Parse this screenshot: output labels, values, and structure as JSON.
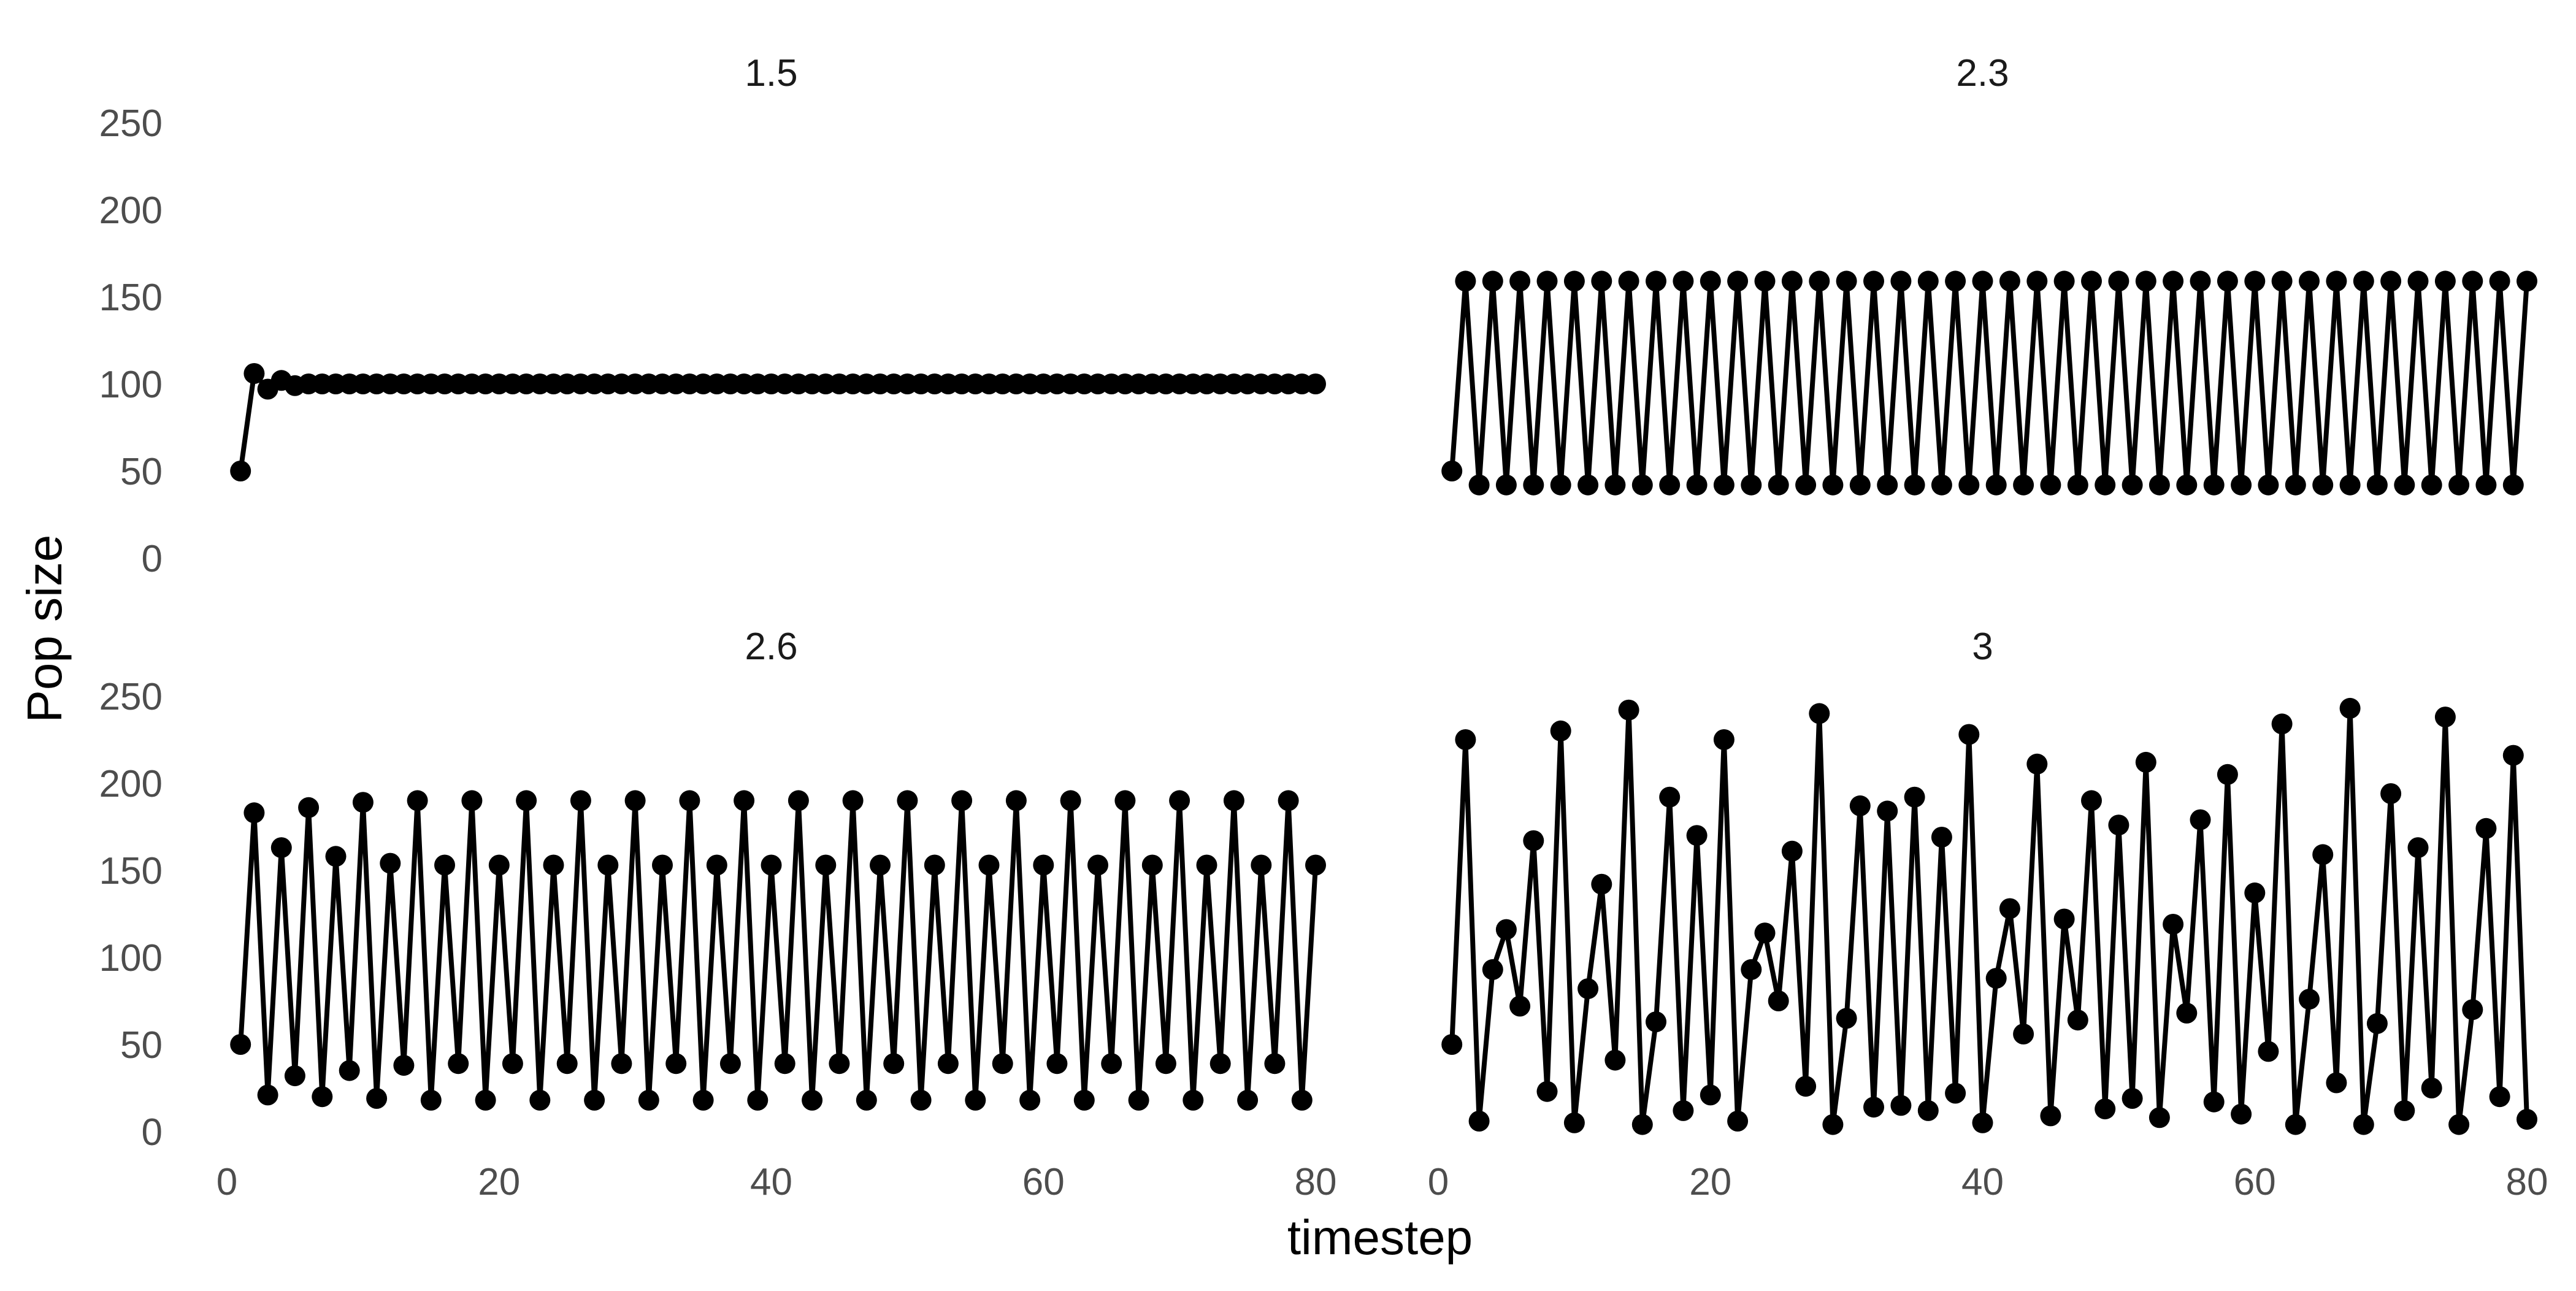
{
  "chart_data": {
    "type": "line",
    "xlabel": "timestep",
    "ylabel": "Pop size",
    "xlim": [
      0,
      80
    ],
    "ylim": [
      0,
      250
    ],
    "x_ticks": [
      0,
      20,
      40,
      60,
      80
    ],
    "y_ticks": [
      0,
      50,
      100,
      150,
      200,
      250
    ],
    "grid": false,
    "markers": true,
    "colors": {
      "line": "#000000",
      "marker": "#000000"
    },
    "panels": [
      {
        "label": "1.5",
        "x": [
          1,
          2,
          3,
          4,
          5,
          6,
          7,
          8,
          9,
          10,
          11,
          12,
          13,
          14,
          15,
          16,
          17,
          18,
          19,
          20,
          21,
          22,
          23,
          24,
          25,
          26,
          27,
          28,
          29,
          30,
          31,
          32,
          33,
          34,
          35,
          36,
          37,
          38,
          39,
          40,
          41,
          42,
          43,
          44,
          45,
          46,
          47,
          48,
          49,
          50,
          51,
          52,
          53,
          54,
          55,
          56,
          57,
          58,
          59,
          60,
          61,
          62,
          63,
          64,
          65,
          66,
          67,
          68,
          69,
          70,
          71,
          72,
          73,
          74,
          75,
          76,
          77,
          78,
          79,
          80
        ],
        "values": [
          50,
          106,
          97,
          102,
          99,
          100,
          100,
          100,
          100,
          100,
          100,
          100,
          100,
          100,
          100,
          100,
          100,
          100,
          100,
          100,
          100,
          100,
          100,
          100,
          100,
          100,
          100,
          100,
          100,
          100,
          100,
          100,
          100,
          100,
          100,
          100,
          100,
          100,
          100,
          100,
          100,
          100,
          100,
          100,
          100,
          100,
          100,
          100,
          100,
          100,
          100,
          100,
          100,
          100,
          100,
          100,
          100,
          100,
          100,
          100,
          100,
          100,
          100,
          100,
          100,
          100,
          100,
          100,
          100,
          100,
          100,
          100,
          100,
          100,
          100,
          100,
          100,
          100,
          100,
          100
        ]
      },
      {
        "label": "2.3",
        "x": [
          1,
          2,
          3,
          4,
          5,
          6,
          7,
          8,
          9,
          10,
          11,
          12,
          13,
          14,
          15,
          16,
          17,
          18,
          19,
          20,
          21,
          22,
          23,
          24,
          25,
          26,
          27,
          28,
          29,
          30,
          31,
          32,
          33,
          34,
          35,
          36,
          37,
          38,
          39,
          40,
          41,
          42,
          43,
          44,
          45,
          46,
          47,
          48,
          49,
          50,
          51,
          52,
          53,
          54,
          55,
          56,
          57,
          58,
          59,
          60,
          61,
          62,
          63,
          64,
          65,
          66,
          67,
          68,
          69,
          70,
          71,
          72,
          73,
          74,
          75,
          76,
          77,
          78,
          79,
          80
        ],
        "values": [
          50,
          159,
          42,
          159,
          42,
          159,
          42,
          159,
          42,
          159,
          42,
          159,
          42,
          159,
          42,
          159,
          42,
          159,
          42,
          159,
          42,
          159,
          42,
          159,
          42,
          159,
          42,
          159,
          42,
          159,
          42,
          159,
          42,
          159,
          42,
          159,
          42,
          159,
          42,
          159,
          42,
          159,
          42,
          159,
          42,
          159,
          42,
          159,
          42,
          159,
          42,
          159,
          42,
          159,
          42,
          159,
          42,
          159,
          42,
          159,
          42,
          159,
          42,
          159,
          42,
          159,
          42,
          159,
          42,
          159,
          42,
          159,
          42,
          159,
          42,
          159,
          42,
          159,
          42,
          159
        ]
      },
      {
        "label": "2.6",
        "x": [
          1,
          2,
          3,
          4,
          5,
          6,
          7,
          8,
          9,
          10,
          11,
          12,
          13,
          14,
          15,
          16,
          17,
          18,
          19,
          20,
          21,
          22,
          23,
          24,
          25,
          26,
          27,
          28,
          29,
          30,
          31,
          32,
          33,
          34,
          35,
          36,
          37,
          38,
          39,
          40,
          41,
          42,
          43,
          44,
          45,
          46,
          47,
          48,
          49,
          50,
          51,
          52,
          53,
          54,
          55,
          56,
          57,
          58,
          59,
          60,
          61,
          62,
          63,
          64,
          65,
          66,
          67,
          68,
          69,
          70,
          71,
          72,
          73,
          74,
          75,
          76,
          77,
          78,
          79,
          80
        ],
        "values": [
          50,
          183,
          21,
          163,
          32,
          186,
          20,
          158,
          35,
          189,
          19,
          154,
          38,
          190,
          18,
          153,
          39,
          190,
          18,
          153,
          39,
          190,
          18,
          153,
          39,
          190,
          18,
          153,
          39,
          190,
          18,
          153,
          39,
          190,
          18,
          153,
          39,
          190,
          18,
          153,
          39,
          190,
          18,
          153,
          39,
          190,
          18,
          153,
          39,
          190,
          18,
          153,
          39,
          190,
          18,
          153,
          39,
          190,
          18,
          153,
          39,
          190,
          18,
          153,
          39,
          190,
          18,
          153,
          39,
          190,
          18,
          153,
          39,
          190,
          18,
          153,
          39,
          190,
          18,
          153
        ]
      },
      {
        "label": "3",
        "x": [
          1,
          2,
          3,
          4,
          5,
          6,
          7,
          8,
          9,
          10,
          11,
          12,
          13,
          14,
          15,
          16,
          17,
          18,
          19,
          20,
          21,
          22,
          23,
          24,
          25,
          26,
          27,
          28,
          29,
          30,
          31,
          32,
          33,
          34,
          35,
          36,
          37,
          38,
          39,
          40,
          41,
          42,
          43,
          44,
          45,
          46,
          47,
          48,
          49,
          50,
          51,
          52,
          53,
          54,
          55,
          56,
          57,
          58,
          59,
          60,
          61,
          62,
          63,
          64,
          65,
          66,
          67,
          68,
          69,
          70,
          71,
          72,
          73,
          74,
          75,
          76,
          77,
          78,
          79,
          80
        ],
        "values": [
          50,
          225,
          6,
          93,
          116,
          72,
          167,
          23,
          230,
          5,
          82,
          142,
          41,
          242,
          4,
          63,
          192,
          12,
          170,
          21,
          225,
          6,
          93,
          114,
          75,
          161,
          26,
          240,
          4,
          65,
          187,
          14,
          184,
          15,
          192,
          12,
          169,
          22,
          228,
          5,
          88,
          128,
          56,
          211,
          9,
          122,
          64,
          190,
          13,
          176,
          19,
          212,
          8,
          119,
          68,
          179,
          17,
          205,
          10,
          137,
          46,
          234,
          4,
          76,
          159,
          28,
          243,
          4,
          62,
          194,
          12,
          163,
          25,
          238,
          4,
          70,
          174,
          20,
          216,
          7
        ]
      }
    ]
  }
}
